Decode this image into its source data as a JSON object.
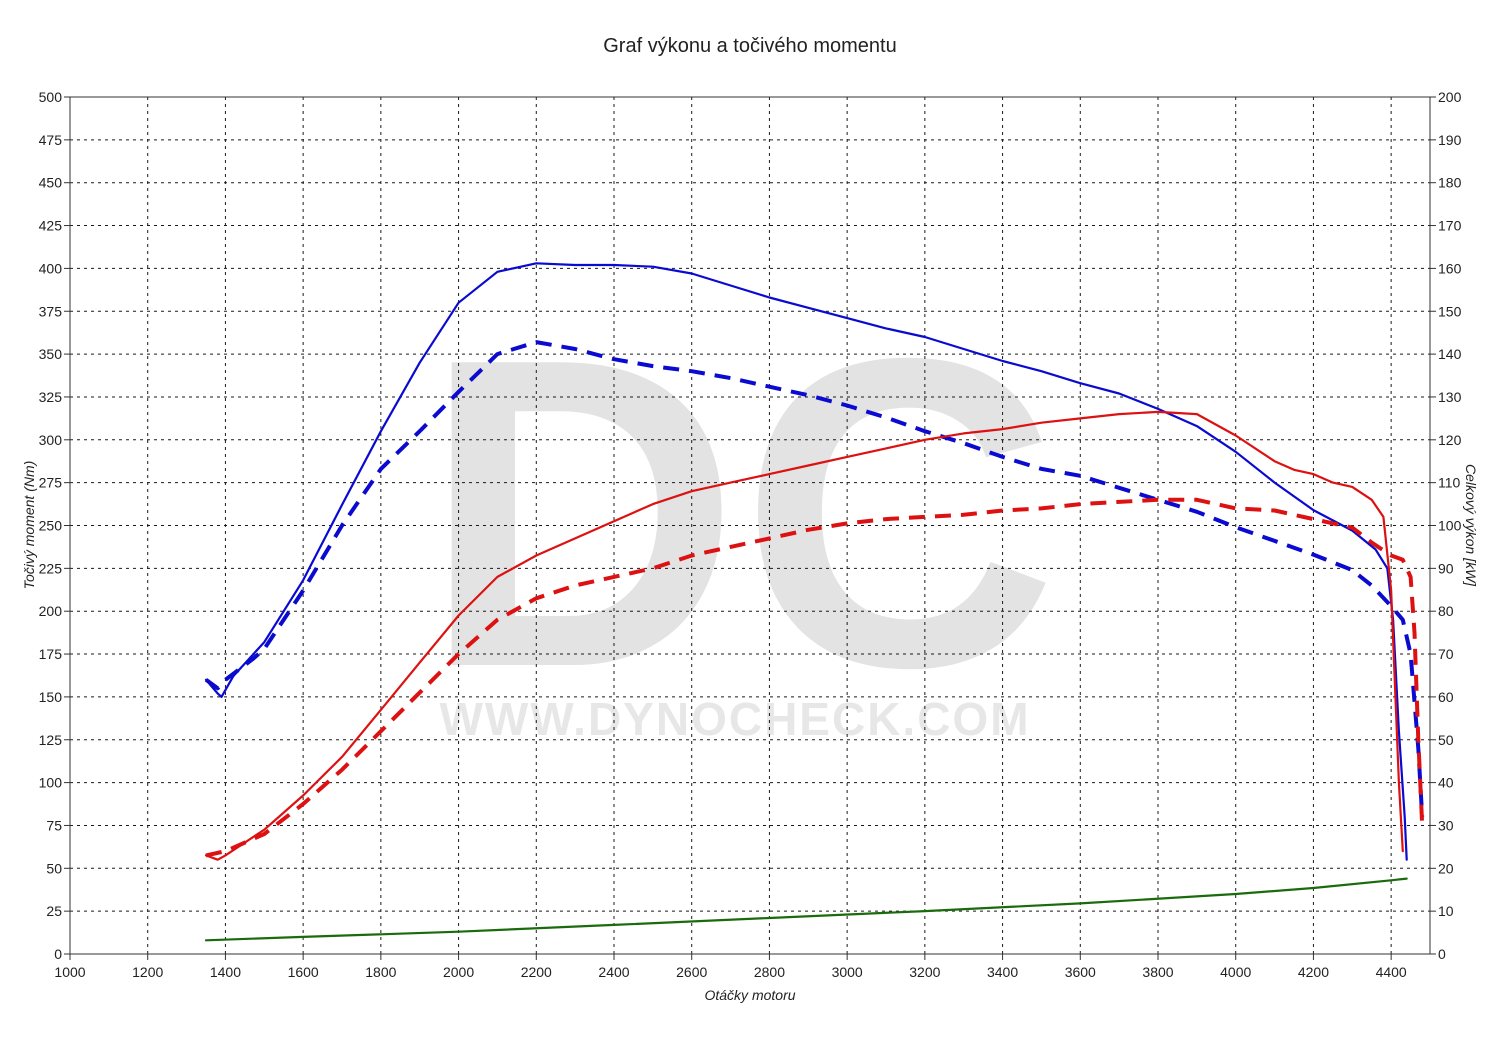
{
  "chart_data": {
    "type": "line",
    "title": "Graf výkonu a točivého momentu",
    "xlabel": "Otáčky motoru",
    "ylabel_left": "Točivý moment (Nm)",
    "ylabel_right": "Celkový výkon [kW]",
    "xlim": [
      1000,
      4500
    ],
    "ylim_left": [
      0,
      500
    ],
    "ylim_right": [
      0,
      200
    ],
    "x_ticks": [
      1000,
      1200,
      1400,
      1600,
      1800,
      2000,
      2200,
      2400,
      2600,
      2800,
      3000,
      3200,
      3400,
      3600,
      3800,
      4000,
      4200,
      4400
    ],
    "y_ticks_left": [
      0,
      25,
      50,
      75,
      100,
      125,
      150,
      175,
      200,
      225,
      250,
      275,
      300,
      325,
      350,
      375,
      400,
      425,
      450,
      475,
      500
    ],
    "y_ticks_right": [
      0,
      10,
      20,
      30,
      40,
      50,
      60,
      70,
      80,
      90,
      100,
      110,
      120,
      130,
      140,
      150,
      160,
      170,
      180,
      190,
      200
    ],
    "grid": true,
    "legend": "none",
    "watermark": {
      "logo_letters": "DC",
      "text": "WWW.DYNOCHECK.COM"
    },
    "series": [
      {
        "axis": "left",
        "color": "#0a0ad0",
        "style": "solid",
        "points": [
          [
            1350,
            160
          ],
          [
            1380,
            152
          ],
          [
            1390,
            150
          ],
          [
            1420,
            162
          ],
          [
            1500,
            182
          ],
          [
            1600,
            218
          ],
          [
            1700,
            262
          ],
          [
            1800,
            305
          ],
          [
            1900,
            345
          ],
          [
            2000,
            380
          ],
          [
            2100,
            398
          ],
          [
            2200,
            403
          ],
          [
            2300,
            402
          ],
          [
            2400,
            402
          ],
          [
            2500,
            401
          ],
          [
            2600,
            397
          ],
          [
            2700,
            390
          ],
          [
            2800,
            383
          ],
          [
            2900,
            377
          ],
          [
            3000,
            371
          ],
          [
            3100,
            365
          ],
          [
            3200,
            360
          ],
          [
            3300,
            353
          ],
          [
            3400,
            346
          ],
          [
            3500,
            340
          ],
          [
            3600,
            333
          ],
          [
            3700,
            327
          ],
          [
            3800,
            318
          ],
          [
            3900,
            308
          ],
          [
            4000,
            293
          ],
          [
            4100,
            275
          ],
          [
            4200,
            259
          ],
          [
            4300,
            247
          ],
          [
            4360,
            236
          ],
          [
            4390,
            225
          ],
          [
            4405,
            195
          ],
          [
            4420,
            130
          ],
          [
            4435,
            80
          ],
          [
            4440,
            55
          ]
        ]
      },
      {
        "axis": "left",
        "color": "#0a0ad0",
        "style": "dashed",
        "points": [
          [
            1350,
            160
          ],
          [
            1380,
            155
          ],
          [
            1400,
            160
          ],
          [
            1470,
            172
          ],
          [
            1500,
            178
          ],
          [
            1600,
            212
          ],
          [
            1700,
            250
          ],
          [
            1800,
            283
          ],
          [
            1900,
            305
          ],
          [
            2000,
            328
          ],
          [
            2100,
            350
          ],
          [
            2200,
            357
          ],
          [
            2300,
            353
          ],
          [
            2400,
            347
          ],
          [
            2500,
            343
          ],
          [
            2600,
            340
          ],
          [
            2700,
            336
          ],
          [
            2800,
            331
          ],
          [
            2900,
            326
          ],
          [
            3000,
            320
          ],
          [
            3100,
            313
          ],
          [
            3200,
            305
          ],
          [
            3300,
            298
          ],
          [
            3400,
            290
          ],
          [
            3500,
            283
          ],
          [
            3600,
            279
          ],
          [
            3700,
            272
          ],
          [
            3800,
            265
          ],
          [
            3900,
            258
          ],
          [
            4000,
            249
          ],
          [
            4100,
            241
          ],
          [
            4200,
            233
          ],
          [
            4300,
            224
          ],
          [
            4350,
            215
          ],
          [
            4400,
            203
          ],
          [
            4430,
            195
          ],
          [
            4450,
            175
          ],
          [
            4470,
            120
          ],
          [
            4480,
            80
          ]
        ]
      },
      {
        "axis": "right",
        "color": "#dd1111",
        "style": "solid",
        "points": [
          [
            1350,
            23
          ],
          [
            1380,
            22
          ],
          [
            1400,
            23
          ],
          [
            1500,
            29
          ],
          [
            1600,
            37
          ],
          [
            1700,
            46
          ],
          [
            1800,
            57
          ],
          [
            1900,
            68
          ],
          [
            2000,
            79
          ],
          [
            2100,
            88
          ],
          [
            2200,
            93
          ],
          [
            2300,
            97
          ],
          [
            2400,
            101
          ],
          [
            2500,
            105
          ],
          [
            2600,
            108
          ],
          [
            2700,
            110
          ],
          [
            2800,
            112
          ],
          [
            2900,
            114
          ],
          [
            3000,
            116
          ],
          [
            3100,
            118
          ],
          [
            3200,
            120
          ],
          [
            3300,
            121.5
          ],
          [
            3400,
            122.5
          ],
          [
            3500,
            124
          ],
          [
            3600,
            125
          ],
          [
            3700,
            126
          ],
          [
            3800,
            126.5
          ],
          [
            3900,
            126
          ],
          [
            4000,
            121
          ],
          [
            4100,
            115
          ],
          [
            4150,
            113
          ],
          [
            4200,
            112
          ],
          [
            4250,
            110
          ],
          [
            4300,
            109
          ],
          [
            4350,
            106
          ],
          [
            4380,
            102
          ],
          [
            4400,
            85
          ],
          [
            4420,
            40
          ],
          [
            4430,
            24
          ]
        ]
      },
      {
        "axis": "right",
        "color": "#dd1111",
        "style": "dashed",
        "points": [
          [
            1350,
            23
          ],
          [
            1400,
            24
          ],
          [
            1500,
            28
          ],
          [
            1600,
            35
          ],
          [
            1700,
            43
          ],
          [
            1800,
            52
          ],
          [
            1900,
            61
          ],
          [
            2000,
            70
          ],
          [
            2100,
            78
          ],
          [
            2200,
            83
          ],
          [
            2300,
            86
          ],
          [
            2400,
            88
          ],
          [
            2500,
            90
          ],
          [
            2600,
            93
          ],
          [
            2700,
            95
          ],
          [
            2800,
            97
          ],
          [
            2900,
            99
          ],
          [
            3000,
            100.5
          ],
          [
            3100,
            101.5
          ],
          [
            3200,
            102
          ],
          [
            3300,
            102.5
          ],
          [
            3400,
            103.5
          ],
          [
            3500,
            104
          ],
          [
            3600,
            105
          ],
          [
            3700,
            105.5
          ],
          [
            3800,
            106
          ],
          [
            3900,
            106
          ],
          [
            4000,
            104
          ],
          [
            4100,
            103.5
          ],
          [
            4200,
            101.5
          ],
          [
            4300,
            99.5
          ],
          [
            4350,
            96
          ],
          [
            4400,
            93
          ],
          [
            4430,
            92
          ],
          [
            4450,
            88
          ],
          [
            4460,
            75
          ],
          [
            4470,
            50
          ],
          [
            4480,
            30
          ]
        ]
      },
      {
        "axis": "left",
        "color": "#1a6b0c",
        "style": "solid",
        "points": [
          [
            1350,
            8
          ],
          [
            1600,
            10
          ],
          [
            2000,
            13
          ],
          [
            2400,
            17
          ],
          [
            2800,
            21
          ],
          [
            3200,
            25
          ],
          [
            3600,
            29.5
          ],
          [
            4000,
            35
          ],
          [
            4200,
            38.5
          ],
          [
            4400,
            43
          ],
          [
            4440,
            44
          ]
        ]
      }
    ]
  }
}
